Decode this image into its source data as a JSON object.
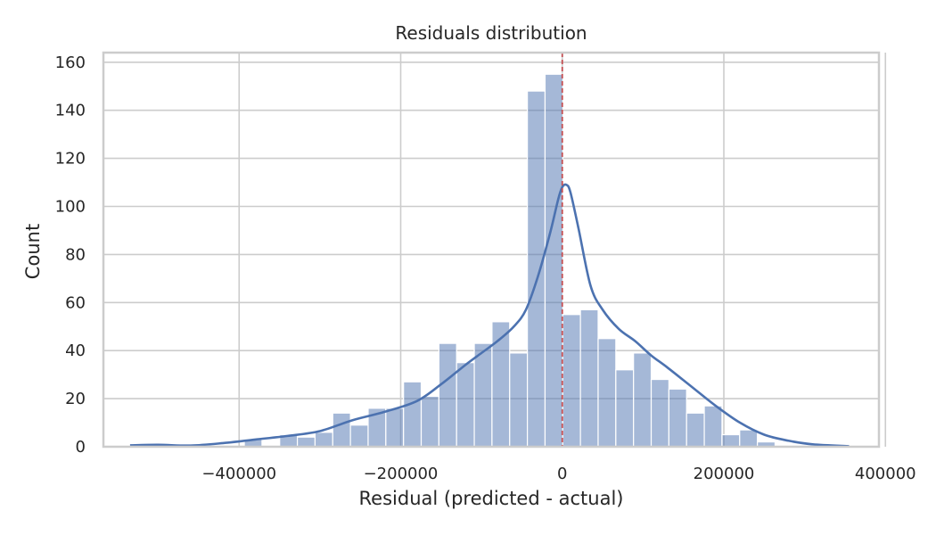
{
  "chart_data": {
    "type": "bar",
    "subtype": "histogram-with-kde",
    "title": "Residuals distribution",
    "xlabel": "Residual (predicted - actual)",
    "ylabel": "Count",
    "xlim": [
      -568000,
      392000
    ],
    "ylim": [
      0,
      164
    ],
    "xticks": [
      -400000,
      -200000,
      0,
      200000,
      400000
    ],
    "xtick_labels": [
      "−400000",
      "−200000",
      "0",
      "200000",
      "400000"
    ],
    "yticks": [
      0,
      20,
      40,
      60,
      80,
      100,
      120,
      140,
      160
    ],
    "ytick_labels": [
      "0",
      "20",
      "40",
      "60",
      "80",
      "100",
      "120",
      "140",
      "160"
    ],
    "grid": true,
    "bin_start": -525000,
    "bin_width": 21900,
    "counts": [
      1,
      0,
      0,
      0,
      0,
      0,
      3,
      0,
      5,
      4,
      6,
      14,
      9,
      16,
      16,
      27,
      21,
      43,
      35,
      43,
      52,
      39,
      148,
      155,
      55,
      57,
      45,
      32,
      39,
      28,
      24,
      14,
      17,
      5,
      7,
      2,
      0
    ],
    "kde": {
      "x": [
        -535000,
        -500000,
        -460000,
        -420000,
        -380000,
        -340000,
        -300000,
        -260000,
        -220000,
        -180000,
        -150000,
        -120000,
        -100000,
        -80000,
        -60000,
        -45000,
        -30000,
        -15000,
        -5000,
        0,
        5000,
        10000,
        20000,
        35000,
        50000,
        70000,
        90000,
        110000,
        130000,
        160000,
        190000,
        220000,
        250000,
        280000,
        310000,
        355000
      ],
      "y": [
        0.6,
        0.8,
        0.5,
        1.5,
        3,
        4.5,
        6.5,
        11,
        14.5,
        19,
        26,
        34,
        39,
        44,
        50,
        57,
        71,
        89,
        103,
        108,
        109,
        106,
        91,
        67,
        57,
        49,
        44,
        38,
        33,
        25,
        17,
        10,
        5,
        2.5,
        1,
        0.2
      ]
    },
    "reference_line": {
      "x": 0,
      "color": "#c44e52",
      "style": "dashed"
    },
    "colors": {
      "bars": "#4c72b0",
      "kde": "#4c72b0",
      "grid": "#cccccc"
    }
  }
}
